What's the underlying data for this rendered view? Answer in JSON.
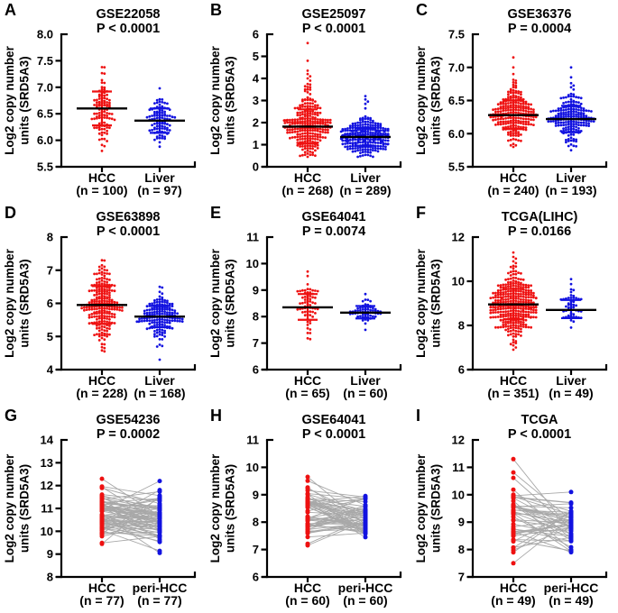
{
  "figure": {
    "ylabel_line1": "Log2 copy number",
    "ylabel_line2": "units (SRD5A3)",
    "colors": {
      "hcc": "#ee1111",
      "comparison": "#1212e0",
      "pair_line": "#a8a8a8",
      "mean_line": "#000000",
      "axis": "#000000",
      "background": "#ffffff"
    }
  },
  "chart_data": [
    {
      "panel": "A",
      "type": "scatter",
      "title": "GSE22058",
      "pvalue": "P < 0.0001",
      "ylabel": "Log2 copy number units (SRD5A3)",
      "ylim": [
        5.5,
        8.0
      ],
      "yticks": [
        5.5,
        6.0,
        6.5,
        7.0,
        7.5,
        8.0
      ],
      "ytick_decimals": 1,
      "groups": [
        {
          "label": "HCC",
          "n_text": "(n = 100)",
          "n": 100,
          "color": "#ee1111",
          "mean": 6.6,
          "sd_low": 6.28,
          "sd_high": 6.92,
          "min": 5.8,
          "max": 7.38
        },
        {
          "label": "Liver",
          "n_text": "(n = 97)",
          "n": 97,
          "color": "#1212e0",
          "mean": 6.37,
          "sd_low": 6.14,
          "sd_high": 6.6,
          "min": 5.88,
          "max": 6.98
        }
      ]
    },
    {
      "panel": "B",
      "type": "scatter",
      "title": "GSE25097",
      "pvalue": "P < 0.0001",
      "ylabel": "Log2 copy number units (SRD5A3)",
      "ylim": [
        0,
        6
      ],
      "yticks": [
        0,
        1,
        2,
        3,
        4,
        5,
        6
      ],
      "ytick_decimals": 0,
      "groups": [
        {
          "label": "HCC",
          "n_text": "(n = 268)",
          "n": 268,
          "color": "#ee1111",
          "mean": 1.82,
          "sd_low": 1.05,
          "sd_high": 2.6,
          "min": 0.45,
          "max": 5.6,
          "outliers": [
            3.5,
            3.6,
            3.75,
            3.9,
            4.0,
            4.1,
            4.2,
            4.35,
            4.8,
            5.6
          ]
        },
        {
          "label": "Liver",
          "n_text": "(n = 289)",
          "n": 289,
          "color": "#1212e0",
          "mean": 1.35,
          "sd_low": 0.95,
          "sd_high": 1.75,
          "min": 0.45,
          "max": 3.2,
          "outliers": [
            2.85,
            2.95,
            3.05,
            3.2
          ]
        }
      ]
    },
    {
      "panel": "C",
      "type": "scatter",
      "title": "GSE36376",
      "pvalue": "P = 0.0004",
      "ylabel": "Log2 copy number units (SRD5A3)",
      "ylim": [
        5.5,
        7.5
      ],
      "yticks": [
        5.5,
        6.0,
        6.5,
        7.0,
        7.5
      ],
      "ytick_decimals": 1,
      "groups": [
        {
          "label": "HCC",
          "n_text": "(n = 240)",
          "n": 240,
          "color": "#ee1111",
          "mean": 6.28,
          "sd_low": 6.07,
          "sd_high": 6.5,
          "min": 5.8,
          "max": 7.15,
          "outliers": [
            6.8,
            6.9,
            7.0,
            7.15
          ]
        },
        {
          "label": "Liver",
          "n_text": "(n = 193)",
          "n": 193,
          "color": "#1212e0",
          "mean": 6.22,
          "sd_low": 6.02,
          "sd_high": 6.42,
          "min": 5.75,
          "max": 7.0,
          "outliers": [
            6.7,
            6.85,
            7.0
          ]
        }
      ]
    },
    {
      "panel": "D",
      "type": "scatter",
      "title": "GSE63898",
      "pvalue": "P < 0.0001",
      "ylabel": "Log2 copy number units (SRD5A3)",
      "ylim": [
        4,
        8
      ],
      "yticks": [
        4,
        5,
        6,
        7,
        8
      ],
      "ytick_decimals": 0,
      "groups": [
        {
          "label": "HCC",
          "n_text": "(n = 228)",
          "n": 228,
          "color": "#ee1111",
          "mean": 5.95,
          "sd_low": 5.38,
          "sd_high": 6.52,
          "min": 4.55,
          "max": 7.3
        },
        {
          "label": "Liver",
          "n_text": "(n = 168)",
          "n": 168,
          "color": "#1212e0",
          "mean": 5.6,
          "sd_low": 5.28,
          "sd_high": 5.92,
          "min": 4.3,
          "max": 6.5,
          "outliers": [
            4.3,
            4.75
          ]
        }
      ]
    },
    {
      "panel": "E",
      "type": "scatter",
      "title": "GSE64041",
      "pvalue": "P = 0.0074",
      "ylabel": "Log2 copy number units (SRD5A3)",
      "ylim": [
        6,
        11
      ],
      "yticks": [
        6,
        7,
        8,
        9,
        10,
        11
      ],
      "ytick_decimals": 0,
      "groups": [
        {
          "label": "HCC",
          "n_text": "(n = 65)",
          "n": 65,
          "color": "#ee1111",
          "mean": 8.35,
          "sd_low": 7.88,
          "sd_high": 8.85,
          "min": 7.15,
          "max": 9.7
        },
        {
          "label": "Liver",
          "n_text": "(n = 60)",
          "n": 60,
          "color": "#1212e0",
          "mean": 8.15,
          "sd_low": 7.93,
          "sd_high": 8.4,
          "min": 7.5,
          "max": 8.85
        }
      ]
    },
    {
      "panel": "F",
      "type": "scatter",
      "title": "TCGA(LIHC)",
      "pvalue": "P = 0.0166",
      "ylabel": "Log2 copy number units (SRD5A3)",
      "ylim": [
        6,
        12
      ],
      "yticks": [
        6,
        8,
        10,
        12
      ],
      "ytick_decimals": 0,
      "groups": [
        {
          "label": "HCC",
          "n_text": "(n = 351)",
          "n": 351,
          "color": "#ee1111",
          "mean": 8.95,
          "sd_low": 8.28,
          "sd_high": 9.65,
          "min": 6.9,
          "max": 11.3,
          "outliers": [
            6.9,
            7.0,
            7.1,
            7.2,
            7.35,
            7.5,
            10.7,
            10.9,
            11.1,
            11.3
          ]
        },
        {
          "label": "Liver",
          "n_text": "(n = 49)",
          "n": 49,
          "color": "#1212e0",
          "mean": 8.7,
          "sd_low": 8.33,
          "sd_high": 9.15,
          "min": 7.9,
          "max": 10.1,
          "outliers": [
            9.6,
            10.1
          ]
        }
      ]
    },
    {
      "panel": "G",
      "type": "paired",
      "title": "GSE54236",
      "pvalue": "P = 0.0002",
      "ylabel": "Log2 copy number units (SRD5A3)",
      "ylim": [
        8,
        14
      ],
      "yticks": [
        8,
        9,
        10,
        11,
        12,
        13,
        14
      ],
      "ytick_decimals": 0,
      "pair_correlation": 0.45,
      "groups": [
        {
          "label": "HCC",
          "n_text": "(n = 77)",
          "n": 77,
          "color": "#ee1111",
          "mean": 10.62,
          "sd": 0.62,
          "min": 9.45,
          "max": 12.3
        },
        {
          "label": "peri-HCC",
          "n_text": "(n = 77)",
          "n": 77,
          "color": "#1212e0",
          "mean": 10.45,
          "sd": 0.58,
          "min": 9.05,
          "max": 12.2
        }
      ]
    },
    {
      "panel": "H",
      "type": "paired",
      "title": "GSE64041",
      "pvalue": "P < 0.0001",
      "ylabel": "Log2 copy number units (SRD5A3)",
      "ylim": [
        6,
        11
      ],
      "yticks": [
        6,
        7,
        8,
        9,
        10,
        11
      ],
      "ytick_decimals": 0,
      "pair_correlation": 0.45,
      "groups": [
        {
          "label": "HCC",
          "n_text": "(n = 60)",
          "n": 60,
          "color": "#ee1111",
          "mean": 8.42,
          "sd": 0.52,
          "min": 7.15,
          "max": 9.65
        },
        {
          "label": "peri-HCC",
          "n_text": "(n = 60)",
          "n": 60,
          "color": "#1212e0",
          "mean": 8.1,
          "sd": 0.38,
          "min": 7.45,
          "max": 8.95
        }
      ]
    },
    {
      "panel": "I",
      "type": "paired",
      "title": "TCGA",
      "pvalue": "P < 0.0001",
      "ylabel": "Log2 copy number units (SRD5A3)",
      "ylim": [
        7,
        12
      ],
      "yticks": [
        7,
        8,
        9,
        10,
        11,
        12
      ],
      "ytick_decimals": 0,
      "pair_correlation": 0.45,
      "groups": [
        {
          "label": "HCC",
          "n_text": "(n = 49)",
          "n": 49,
          "color": "#ee1111",
          "mean": 9.1,
          "sd": 0.72,
          "min": 7.5,
          "max": 11.3
        },
        {
          "label": "peri-HCC",
          "n_text": "(n = 49)",
          "n": 49,
          "color": "#1212e0",
          "mean": 8.8,
          "sd": 0.55,
          "min": 7.9,
          "max": 10.1
        }
      ]
    }
  ]
}
